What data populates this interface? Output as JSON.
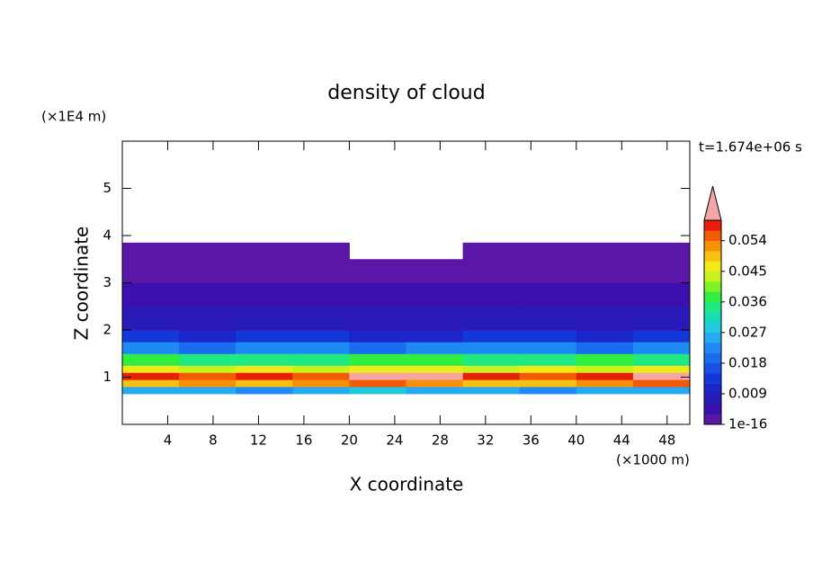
{
  "chart_data": {
    "type": "heatmap",
    "title": "density of cloud",
    "x_label": "X coordinate",
    "y_label": "Z coordinate",
    "x_unit": "(×1000 m)",
    "y_unit": "(×1E4 m)",
    "time_label": "t=1.674e+06 s",
    "xlim": [
      0,
      50
    ],
    "ylim": [
      0,
      6
    ],
    "xticks": [
      4,
      8,
      12,
      16,
      20,
      24,
      28,
      32,
      36,
      40,
      44,
      48
    ],
    "yticks": [
      1,
      2,
      3,
      4,
      5
    ],
    "x": [
      0,
      5,
      10,
      15,
      20,
      25,
      30,
      35,
      40,
      45,
      50
    ],
    "y": [
      0.65,
      0.8,
      0.95,
      1.1,
      1.25,
      1.5,
      1.75,
      2.0,
      2.5,
      3.0,
      3.5,
      3.85
    ],
    "values": [
      [
        0.024,
        0.026,
        0.022,
        0.025,
        0.027,
        0.024,
        0.026,
        0.023,
        0.025,
        0.024
      ],
      [
        0.05,
        0.052,
        0.048,
        0.051,
        0.055,
        0.053,
        0.05,
        0.049,
        0.052,
        0.054
      ],
      [
        0.057,
        0.055,
        0.058,
        0.056,
        0.061,
        0.062,
        0.058,
        0.056,
        0.057,
        0.061
      ],
      [
        0.045,
        0.043,
        0.046,
        0.044,
        0.047,
        0.045,
        0.043,
        0.046,
        0.044,
        0.045
      ],
      [
        0.036,
        0.034,
        0.035,
        0.033,
        0.036,
        0.037,
        0.034,
        0.035,
        0.036,
        0.034
      ],
      [
        0.022,
        0.02,
        0.023,
        0.021,
        0.02,
        0.022,
        0.021,
        0.023,
        0.02,
        0.022
      ],
      [
        0.012,
        0.011,
        0.013,
        0.012,
        0.01,
        0.011,
        0.012,
        0.013,
        0.011,
        0.012
      ],
      [
        0.007,
        0.006,
        0.007,
        0.008,
        0.006,
        0.007,
        0.006,
        0.007,
        0.008,
        0.007
      ],
      [
        0.004,
        0.004,
        0.005,
        0.004,
        0.003,
        0.004,
        0.004,
        0.005,
        0.004,
        0.004
      ],
      [
        0.002,
        0.002,
        0.002,
        0.002,
        0.002,
        0.002,
        0.002,
        0.002,
        0.002,
        0.002
      ],
      [
        0.001,
        0.001,
        0.001,
        0.001,
        null,
        null,
        0.001,
        0.001,
        0.001,
        0.001
      ]
    ],
    "colorbar": {
      "lim": [
        0,
        0.06
      ],
      "ticks": [
        1e-16,
        0.009,
        0.018,
        0.027,
        0.036,
        0.045,
        0.054
      ],
      "colors": [
        "#5a16a6",
        "#3c10ae",
        "#2a1ab8",
        "#1a26c8",
        "#1438d8",
        "#1650e6",
        "#1c6cf0",
        "#208af4",
        "#26a8f2",
        "#20c8e0",
        "#18dcb8",
        "#20e882",
        "#30ef40",
        "#7cf22a",
        "#c8f21e",
        "#f2ea18",
        "#f8c010",
        "#f89008",
        "#f45a06",
        "#e81e0a"
      ],
      "extend_color": "#f4a6a6"
    }
  }
}
